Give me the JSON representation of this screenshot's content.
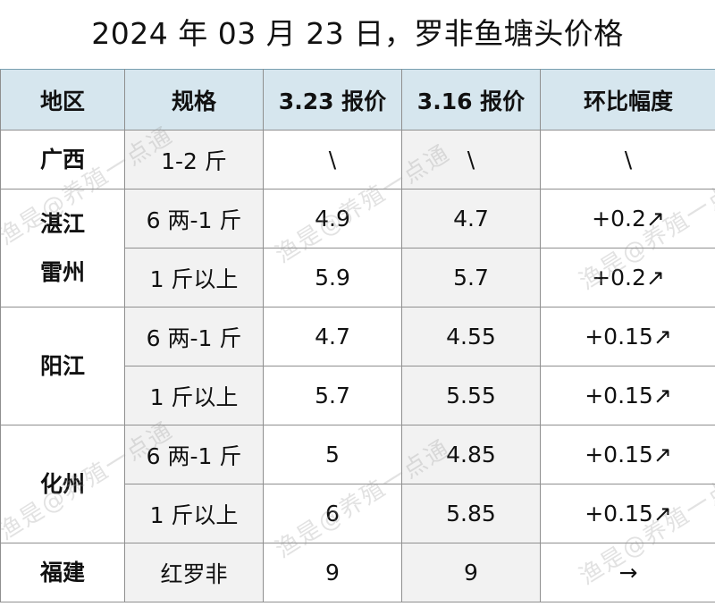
{
  "title": "2024 年 03 月 23 日，罗非鱼塘头价格",
  "headers": [
    "地区",
    "规格",
    "3.23 报价",
    "3.16 报价",
    "环比幅度"
  ],
  "regions": {
    "guangxi": "广西",
    "zhanjiang_line1": "湛江",
    "zhanjiang_line2": "雷州",
    "yangjiang": "阳江",
    "huazhou": "化州",
    "fujian": "福建"
  },
  "rows": [
    {
      "spec": "1-2 斤",
      "price_323": "\\",
      "price_316": "\\",
      "change": "\\"
    },
    {
      "spec": "6 两-1 斤",
      "price_323": "4.9",
      "price_316": "4.7",
      "change": "+0.2↗"
    },
    {
      "spec": "1 斤以上",
      "price_323": "5.9",
      "price_316": "5.7",
      "change": "+0.2↗"
    },
    {
      "spec": "6 两-1 斤",
      "price_323": "4.7",
      "price_316": "4.55",
      "change": "+0.15↗"
    },
    {
      "spec": "1 斤以上",
      "price_323": "5.7",
      "price_316": "5.55",
      "change": "+0.15↗"
    },
    {
      "spec": "6 两-1 斤",
      "price_323": "5",
      "price_316": "4.85",
      "change": "+0.15↗"
    },
    {
      "spec": "1 斤以上",
      "price_323": "6",
      "price_316": "5.85",
      "change": "+0.15↗"
    },
    {
      "spec": "红罗非",
      "price_323": "9",
      "price_316": "9",
      "change": "→"
    }
  ],
  "watermark_text": "渔是@养殖一点通"
}
